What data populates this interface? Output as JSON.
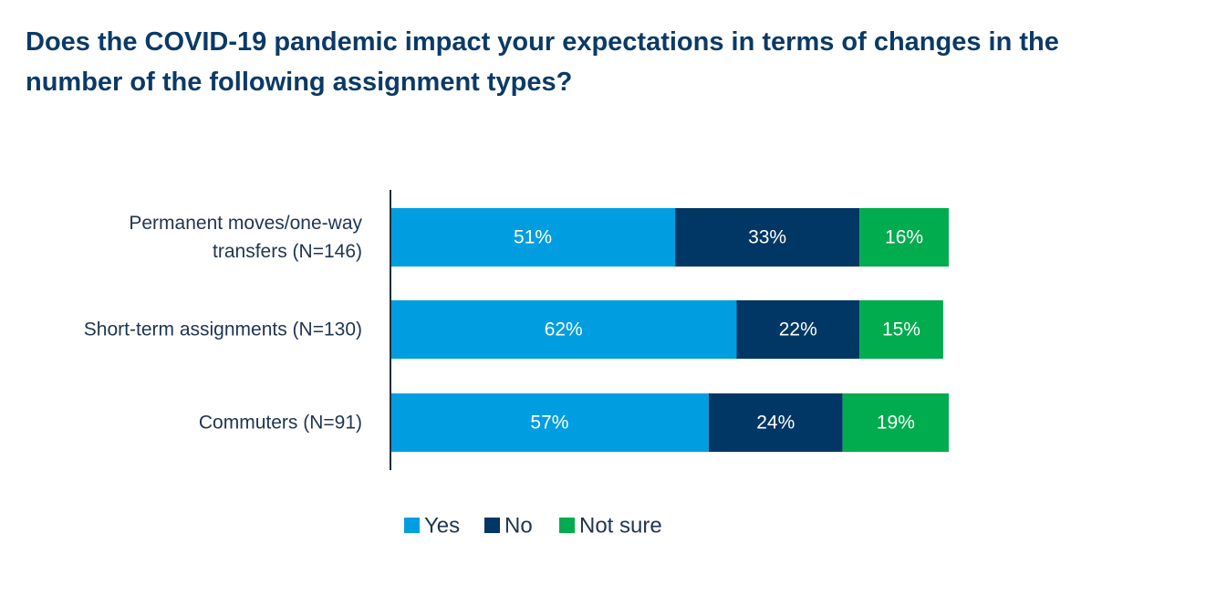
{
  "chart_data": {
    "type": "bar",
    "orientation": "horizontal",
    "stacked": true,
    "title": "Does the COVID-19 pandemic impact your expectations in terms of changes in the number of the following assignment types?",
    "categories": [
      [
        "Permanent moves/one-way",
        "transfers (N=146)"
      ],
      [
        "Short-term assignments (N=130)"
      ],
      [
        "Commuters (N=91)"
      ]
    ],
    "series": [
      {
        "name": "Yes",
        "color": "#009ee0",
        "values": [
          51,
          62,
          57
        ],
        "labels": [
          "51%",
          "62%",
          "57%"
        ]
      },
      {
        "name": "No",
        "color": "#003764",
        "values": [
          33,
          22,
          24
        ],
        "labels": [
          "33%",
          "22%",
          "24%"
        ]
      },
      {
        "name": "Not sure",
        "color": "#00ac4e",
        "values": [
          16,
          15,
          19
        ],
        "labels": [
          "16%",
          "15%",
          "19%"
        ]
      }
    ],
    "xlim": [
      0,
      100
    ],
    "grid": false,
    "legend": "bottom-center"
  }
}
